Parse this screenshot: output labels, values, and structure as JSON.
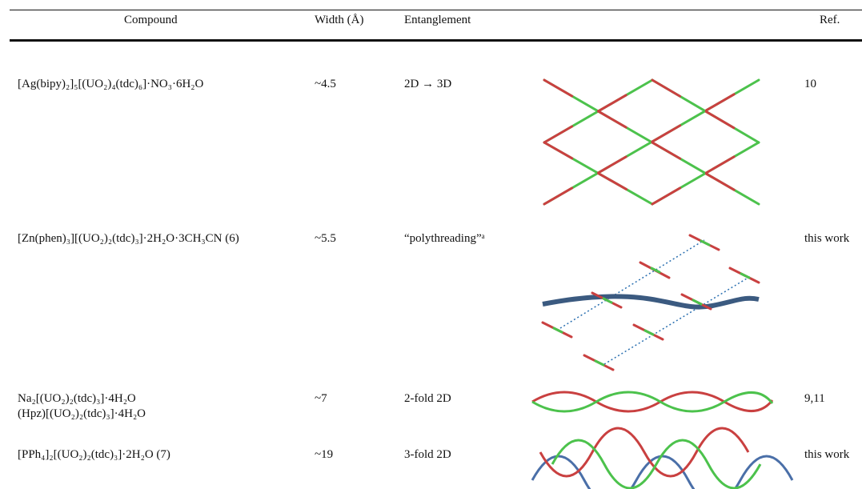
{
  "table": {
    "header": [
      "Compound",
      "Width (Å)",
      "Entanglement",
      "Ref."
    ],
    "rows": [
      {
        "compound": [
          "[Ag(bipy)₂]₅[(UO₂)₄(tdc)₆]·NO₃·6H₂O"
        ],
        "width": "~4.5",
        "entanglement": "2D → 3D",
        "ref": "10"
      },
      {
        "compound": [
          "[Zn(phen)₃][(UO₂)₂(tdc)₃]·2H₂O·3CH₃CN (6)"
        ],
        "width": "~5.5",
        "entanglement": "“polythreading”ᵃ",
        "ref": "this work"
      },
      {
        "compound": [
          "Na₂[(UO₂)₂(tdc)₃]·4H₂O",
          "(Hpz)[(UO₂)₂(tdc)₃]·4H₂O"
        ],
        "width": "~7",
        "entanglement": "2-fold 2D",
        "ref": "9,11"
      },
      {
        "compound": [
          "[PPh₄]₂[(UO₂)₂(tdc)₃]·2H₂O (7)"
        ],
        "width": "~19",
        "entanglement": "3-fold 2D",
        "ref": "this work"
      }
    ]
  }
}
